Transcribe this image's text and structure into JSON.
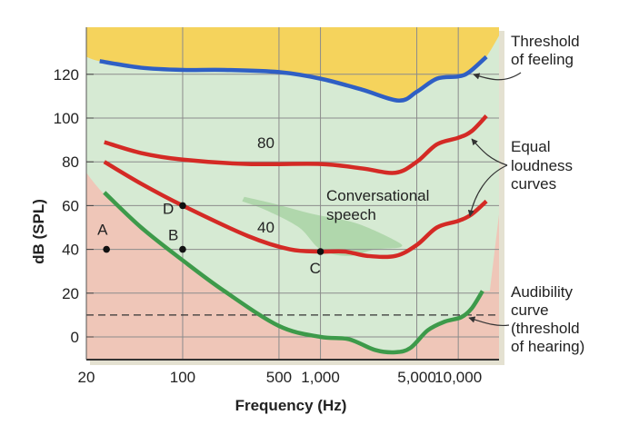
{
  "chart_data": {
    "type": "line",
    "title": "",
    "xlabel": "Frequency (Hz)",
    "ylabel": "dB (SPL)",
    "x_scale": "log",
    "xlim": [
      20,
      20000
    ],
    "ylim": [
      -10,
      141
    ],
    "grid": true,
    "x_ticks": [
      {
        "value": 20,
        "label": "20"
      },
      {
        "value": 100,
        "label": "100"
      },
      {
        "value": 500,
        "label": "500"
      },
      {
        "value": 1000,
        "label": "1,000"
      },
      {
        "value": 5000,
        "label": "5,000"
      },
      {
        "value": 10000,
        "label": "10,000"
      }
    ],
    "y_ticks": [
      {
        "value": 0,
        "label": "0"
      },
      {
        "value": 20,
        "label": "20"
      },
      {
        "value": 40,
        "label": "40"
      },
      {
        "value": 60,
        "label": "60"
      },
      {
        "value": 80,
        "label": "80"
      },
      {
        "value": 100,
        "label": "100"
      },
      {
        "value": 120,
        "label": "120"
      }
    ],
    "series": [
      {
        "name": "Threshold of feeling",
        "color": "#2f5fc4",
        "points": [
          [
            25,
            126
          ],
          [
            50,
            123
          ],
          [
            100,
            122
          ],
          [
            200,
            122
          ],
          [
            500,
            121
          ],
          [
            1000,
            118
          ],
          [
            2000,
            113
          ],
          [
            3700,
            108
          ],
          [
            5000,
            112
          ],
          [
            7000,
            118
          ],
          [
            10000,
            119
          ],
          [
            12000,
            121
          ],
          [
            16000,
            128
          ]
        ]
      },
      {
        "name": "80",
        "color": "#d42a25",
        "points": [
          [
            27,
            89
          ],
          [
            50,
            84
          ],
          [
            100,
            81
          ],
          [
            300,
            79
          ],
          [
            1000,
            79
          ],
          [
            2000,
            77
          ],
          [
            3500,
            75
          ],
          [
            5000,
            80
          ],
          [
            7000,
            88
          ],
          [
            10000,
            91
          ],
          [
            12500,
            94
          ],
          [
            16000,
            101
          ]
        ]
      },
      {
        "name": "40",
        "color": "#d42a25",
        "points": [
          [
            27,
            80
          ],
          [
            50,
            70
          ],
          [
            100,
            60
          ],
          [
            300,
            46
          ],
          [
            600,
            40
          ],
          [
            1000,
            39
          ],
          [
            1500,
            39
          ],
          [
            2200,
            37
          ],
          [
            3500,
            37
          ],
          [
            5000,
            42
          ],
          [
            7000,
            50
          ],
          [
            10000,
            53
          ],
          [
            12500,
            56
          ],
          [
            16000,
            62
          ]
        ]
      },
      {
        "name": "Audibility curve (threshold of hearing)",
        "color": "#3d9a4a",
        "points": [
          [
            27,
            66
          ],
          [
            50,
            50
          ],
          [
            100,
            35
          ],
          [
            200,
            21
          ],
          [
            500,
            5
          ],
          [
            1000,
            0
          ],
          [
            1600,
            -1
          ],
          [
            2500,
            -6
          ],
          [
            3500,
            -7
          ],
          [
            4500,
            -5
          ],
          [
            6000,
            3
          ],
          [
            8000,
            7
          ],
          [
            10500,
            9
          ],
          [
            12500,
            13
          ],
          [
            15000,
            21
          ]
        ]
      }
    ],
    "reference_line": {
      "y": 10,
      "style": "dashed"
    },
    "points": [
      {
        "label": "A",
        "x": 28,
        "y": 40
      },
      {
        "label": "B",
        "x": 100,
        "y": 40
      },
      {
        "label": "C",
        "x": 1000,
        "y": 39
      },
      {
        "label": "D",
        "x": 100,
        "y": 60
      }
    ],
    "region_labels": {
      "speech": "Conversational speech",
      "speech_lines": [
        "Conversational",
        "speech"
      ]
    },
    "annotations": {
      "feeling": [
        "Threshold",
        "of feeling"
      ],
      "equal": [
        "Equal",
        "loudness",
        "curves"
      ],
      "audibility": [
        "Audibility",
        "curve",
        "(threshold",
        "of hearing)"
      ]
    },
    "colors": {
      "feeling_region": "#f5d35c",
      "audible_region": "#d6ead3",
      "inaudible_region": "#efc6b8",
      "speech_region": "#a9d4a4"
    }
  }
}
